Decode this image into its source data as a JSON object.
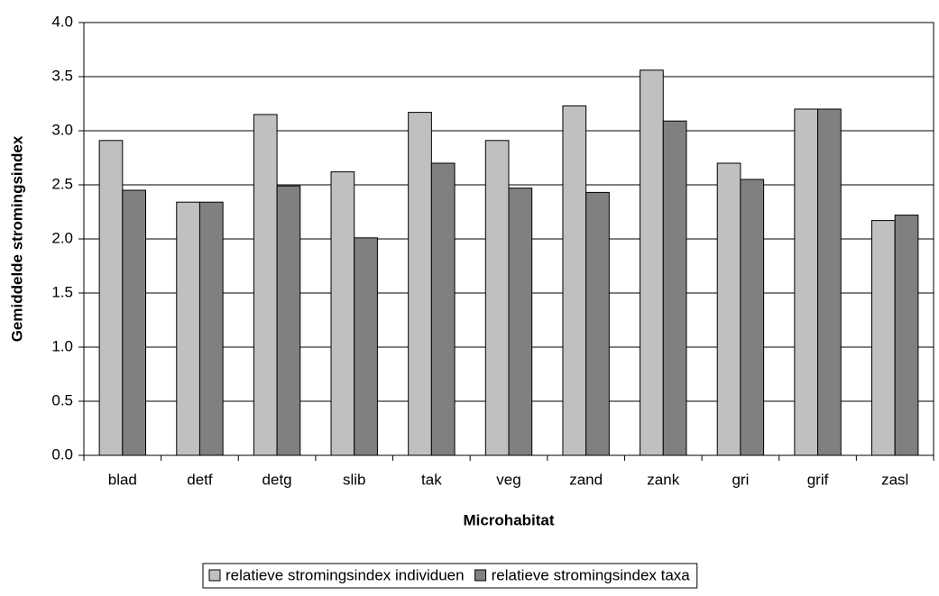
{
  "chart_data": {
    "type": "bar",
    "x_label": "Microhabitat",
    "y_label": "Gemiddelde stromingsindex",
    "categories": [
      "blad",
      "detf",
      "detg",
      "slib",
      "tak",
      "veg",
      "zand",
      "zank",
      "gri",
      "grif",
      "zasl"
    ],
    "series": [
      {
        "name": "relatieve stromingsindex individuen",
        "color": "#c0c0c0",
        "values": [
          2.91,
          2.34,
          3.15,
          2.62,
          3.17,
          2.91,
          3.23,
          3.56,
          2.7,
          3.2,
          2.17
        ]
      },
      {
        "name": "relatieve stromingsindex taxa",
        "color": "#808080",
        "values": [
          2.45,
          2.34,
          2.49,
          2.01,
          2.7,
          2.47,
          2.43,
          3.09,
          2.55,
          3.2,
          2.22
        ]
      }
    ],
    "ylim": [
      0,
      4
    ],
    "yticks": [
      {
        "value": 0,
        "label": "0.0"
      },
      0.5,
      {
        "value": 1,
        "label": "1.0"
      },
      1.5,
      {
        "value": 2,
        "label": "2.0"
      },
      2.5,
      {
        "value": 3,
        "label": "3.0"
      },
      3.5,
      {
        "value": 4,
        "label": "4.0"
      }
    ],
    "grid": true,
    "legend": "bottom"
  }
}
